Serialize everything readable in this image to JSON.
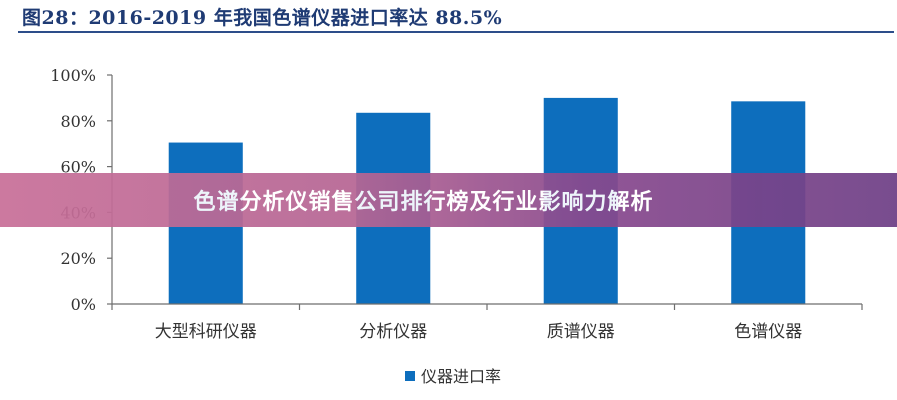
{
  "figure": {
    "title": "图28：2016-2019 年我国色谱仪器进口率达 88.5%"
  },
  "banner": {
    "text": "色谱分析仪销售公司排行榜及行业影响力解析"
  },
  "chart_data": {
    "type": "bar",
    "title": "图28：2016-2019 年我国色谱仪器进口率达 88.5%",
    "categories": [
      "大型科研仪器",
      "分析仪器",
      "质谱仪器",
      "色谱仪器"
    ],
    "series": [
      {
        "name": "仪器进口率",
        "values": [
          70.5,
          83.5,
          90.0,
          88.5
        ]
      }
    ],
    "ylim": [
      0,
      100
    ],
    "yticks": [
      "0%",
      "20%",
      "40%",
      "60%",
      "80%",
      "100%"
    ],
    "xlabel": "",
    "ylabel": "",
    "grid": false,
    "legend_position": "bottom",
    "colors": {
      "bar": "#0d6ebd",
      "axis": "#6e6e6e",
      "title": "#1f3b74"
    }
  }
}
